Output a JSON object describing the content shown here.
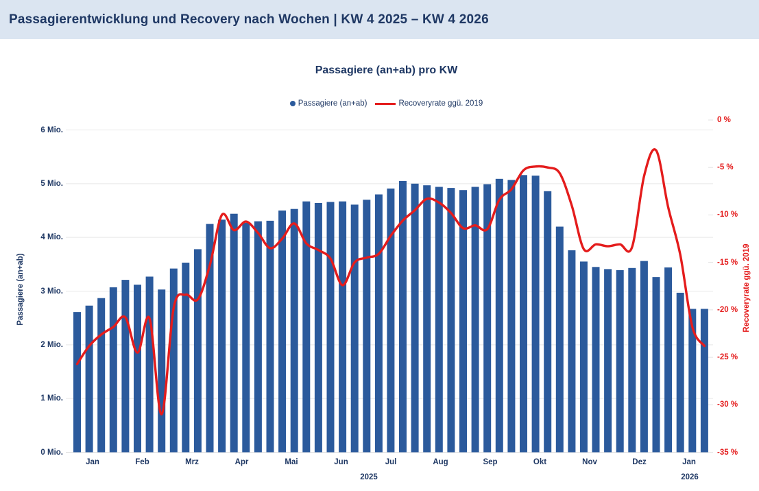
{
  "header": {
    "title": "Passagierentwicklung und Recovery nach Wochen | KW 4 2025 – KW 4 2026"
  },
  "chart": {
    "title": "Passagiere (an+ab) pro KW",
    "legend": [
      {
        "label": "Passagiere (an+ab)",
        "marker": "circle",
        "color": "#2b5a9c"
      },
      {
        "label": "Recoveryrate ggü. 2019",
        "marker": "line",
        "color": "#e41c1c"
      }
    ],
    "left_axis": {
      "title": "Passagiere (an+ab)",
      "ticks": [
        "6 Mio.",
        "5 Mio.",
        "4 Mio.",
        "3 Mio.",
        "2 Mio.",
        "1 Mio.",
        "0 Mio."
      ]
    },
    "right_axis": {
      "title": "Recoveryrate ggü. 2019",
      "ticks": [
        "0 %",
        "-5 %",
        "-10 %",
        "-15 %",
        "-20 %",
        "-25 %",
        "-30 %",
        "-35 %"
      ]
    },
    "x_axis": {
      "year_left": "2025",
      "year_right": "2026"
    }
  },
  "chart_data": {
    "type": "bar+line",
    "title": "Passagiere (an+ab) pro KW",
    "x_start_week": "KW 4 2025",
    "x_end_week": "KW 4 2026",
    "weeks_count": 53,
    "month_tick_labels": [
      "Jan",
      "Feb",
      "Mrz",
      "Apr",
      "Mai",
      "Jun",
      "Jul",
      "Aug",
      "Sep",
      "Okt",
      "Nov",
      "Dez",
      "Jan"
    ],
    "left_axis_range_mio": [
      0,
      6
    ],
    "right_axis_range_pct": [
      -35,
      0
    ],
    "grid": "horizontal",
    "legend_position": "top-center",
    "series": [
      {
        "name": "Passagiere (an+ab)",
        "type": "bar",
        "axis": "left",
        "unit": "Mio.",
        "color": "#2b5a9c",
        "values": [
          2.61,
          2.73,
          2.87,
          3.07,
          3.21,
          3.12,
          3.27,
          3.03,
          3.42,
          3.53,
          3.78,
          4.25,
          4.33,
          4.44,
          4.27,
          4.3,
          4.31,
          4.5,
          4.53,
          4.67,
          4.64,
          4.66,
          4.67,
          4.61,
          4.7,
          4.8,
          4.91,
          5.05,
          5.0,
          4.97,
          4.94,
          4.92,
          4.88,
          4.94,
          4.99,
          5.09,
          5.07,
          5.16,
          5.15,
          4.86,
          4.2,
          3.76,
          3.55,
          3.45,
          3.41,
          3.39,
          3.43,
          3.56,
          3.26,
          3.44,
          2.97,
          2.67,
          2.67
        ]
      },
      {
        "name": "Recoveryrate ggü. 2019",
        "type": "line",
        "axis": "right",
        "unit": "%",
        "color": "#e41c1c",
        "values": [
          -25.7,
          -23.8,
          -22.6,
          -21.8,
          -20.8,
          -24.5,
          -20.9,
          -31.0,
          -19.8,
          -18.4,
          -18.9,
          -15.3,
          -10.0,
          -11.6,
          -10.7,
          -11.9,
          -13.5,
          -12.5,
          -10.9,
          -13.0,
          -13.7,
          -14.6,
          -17.4,
          -15.0,
          -14.5,
          -14.1,
          -12.2,
          -10.6,
          -9.5,
          -8.3,
          -8.7,
          -9.8,
          -11.4,
          -11.1,
          -11.5,
          -8.4,
          -7.3,
          -5.3,
          -4.9,
          -5.0,
          -5.6,
          -9.0,
          -13.6,
          -13.1,
          -13.3,
          -13.1,
          -13.4,
          -5.9,
          -3.2,
          -9.2,
          -14.2,
          -21.8,
          -23.8
        ]
      }
    ]
  }
}
